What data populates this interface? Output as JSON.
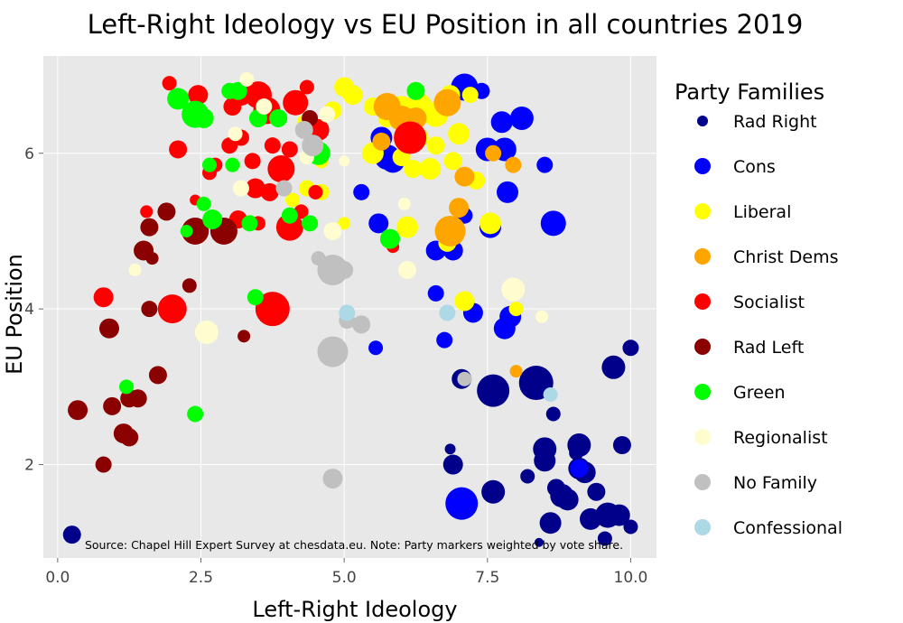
{
  "chart_data": {
    "type": "scatter",
    "title": "Left-Right Ideology vs EU Position in all countries 2019",
    "xlabel": "Left-Right Ideology",
    "ylabel": "EU Position",
    "xlim": [
      -0.25,
      10.45
    ],
    "ylim": [
      0.8,
      7.25
    ],
    "xticks": [
      0,
      2.5,
      5,
      7.5,
      10
    ],
    "xtick_labels": [
      "0.0",
      "2.5",
      "5.0",
      "7.5",
      "10.0"
    ],
    "yticks": [
      2,
      4,
      6
    ],
    "ytick_labels": [
      "2",
      "4",
      "6"
    ],
    "grid": true,
    "legend_title": "Party Families",
    "legend_position": "right",
    "annotation": "Source: Chapel Hill Expert Survey at chesdata.eu. Note: Party markers weighted by vote share.",
    "series": [
      {
        "name": "Rad Right",
        "color": "#00008b",
        "points": [
          [
            9.6,
            1.35,
            14
          ],
          [
            9.3,
            1.3,
            12
          ],
          [
            8.8,
            1.6,
            13
          ],
          [
            8.5,
            2.2,
            13
          ],
          [
            9.1,
            2.25,
            13
          ],
          [
            9.7,
            3.25,
            13
          ],
          [
            10.0,
            3.5,
            9
          ],
          [
            8.35,
            3.05,
            19
          ],
          [
            7.6,
            2.95,
            18
          ],
          [
            7.05,
            3.1,
            11
          ],
          [
            8.5,
            2.05,
            12
          ],
          [
            9.1,
            1.95,
            12
          ],
          [
            9.2,
            1.9,
            12
          ],
          [
            8.7,
            1.7,
            10
          ],
          [
            8.9,
            1.55,
            12
          ],
          [
            8.6,
            1.25,
            12
          ],
          [
            8.2,
            1.85,
            8
          ],
          [
            9.55,
            1.05,
            8
          ],
          [
            10.0,
            1.2,
            8
          ],
          [
            9.85,
            2.25,
            10
          ],
          [
            9.05,
            2.15,
            8
          ],
          [
            6.9,
            2.0,
            11
          ],
          [
            6.85,
            2.2,
            6
          ],
          [
            7.6,
            1.65,
            13
          ],
          [
            8.4,
            1.0,
            5
          ],
          [
            8.65,
            2.65,
            8
          ],
          [
            9.8,
            1.35,
            12
          ],
          [
            9.4,
            1.65,
            10
          ],
          [
            0.25,
            1.1,
            10
          ]
        ]
      },
      {
        "name": "Cons",
        "color": "#0000ff",
        "points": [
          [
            7.1,
            6.85,
            15
          ],
          [
            7.4,
            6.8,
            9
          ],
          [
            7.75,
            6.4,
            12
          ],
          [
            8.1,
            6.45,
            13
          ],
          [
            7.5,
            6.05,
            13
          ],
          [
            7.8,
            6.05,
            13
          ],
          [
            8.5,
            5.85,
            9
          ],
          [
            7.85,
            5.5,
            12
          ],
          [
            8.65,
            5.1,
            14
          ],
          [
            7.55,
            5.05,
            12
          ],
          [
            6.9,
            4.75,
            11
          ],
          [
            6.6,
            4.75,
            11
          ],
          [
            7.1,
            5.2,
            9
          ],
          [
            6.6,
            4.2,
            9
          ],
          [
            7.8,
            3.75,
            12
          ],
          [
            7.9,
            3.9,
            12
          ],
          [
            7.25,
            3.95,
            11
          ],
          [
            6.75,
            3.6,
            9
          ],
          [
            5.75,
            5.95,
            14
          ],
          [
            5.85,
            5.9,
            13
          ],
          [
            5.65,
            6.2,
            12
          ],
          [
            5.6,
            5.1,
            11
          ],
          [
            7.05,
            1.5,
            18
          ],
          [
            9.1,
            1.95,
            10
          ],
          [
            5.55,
            3.5,
            8
          ],
          [
            5.3,
            5.5,
            9
          ]
        ]
      },
      {
        "name": "Liberal",
        "color": "#ffff00",
        "points": [
          [
            6.0,
            6.55,
            16
          ],
          [
            6.3,
            6.6,
            15
          ],
          [
            6.6,
            6.5,
            14
          ],
          [
            6.85,
            6.75,
            11
          ],
          [
            7.2,
            6.75,
            9
          ],
          [
            5.5,
            6.6,
            10
          ],
          [
            5.75,
            6.45,
            10
          ],
          [
            5.0,
            6.85,
            11
          ],
          [
            5.15,
            6.75,
            11
          ],
          [
            4.8,
            6.55,
            10
          ],
          [
            6.3,
            6.2,
            11
          ],
          [
            6.6,
            6.1,
            10
          ],
          [
            7.0,
            6.25,
            12
          ],
          [
            6.5,
            5.8,
            12
          ],
          [
            6.9,
            5.9,
            10
          ],
          [
            7.3,
            5.65,
            10
          ],
          [
            6.0,
            5.95,
            10
          ],
          [
            5.5,
            6.0,
            12
          ],
          [
            4.6,
            5.9,
            8
          ],
          [
            4.35,
            5.55,
            9
          ],
          [
            4.6,
            5.5,
            9
          ],
          [
            5.0,
            5.1,
            7
          ],
          [
            6.2,
            5.8,
            10
          ],
          [
            6.1,
            5.05,
            12
          ],
          [
            6.8,
            4.85,
            10
          ],
          [
            7.1,
            4.1,
            11
          ],
          [
            7.55,
            5.1,
            12
          ],
          [
            8.0,
            4.0,
            8
          ],
          [
            4.3,
            6.4,
            8
          ],
          [
            4.45,
            6.05,
            8
          ],
          [
            4.1,
            5.4,
            8
          ]
        ]
      },
      {
        "name": "Christ Dems",
        "color": "#ffa500",
        "points": [
          [
            5.75,
            6.6,
            15
          ],
          [
            6.0,
            6.45,
            14
          ],
          [
            6.8,
            6.65,
            15
          ],
          [
            7.1,
            5.7,
            11
          ],
          [
            7.0,
            5.3,
            11
          ],
          [
            6.85,
            5.0,
            17
          ],
          [
            7.95,
            5.85,
            9
          ],
          [
            7.6,
            6.0,
            9
          ],
          [
            8.0,
            3.2,
            7
          ],
          [
            5.65,
            6.15,
            10
          ],
          [
            6.25,
            6.45,
            12
          ]
        ]
      },
      {
        "name": "Socialist",
        "color": "#ff0000",
        "points": [
          [
            1.95,
            6.9,
            8
          ],
          [
            2.45,
            6.75,
            11
          ],
          [
            3.2,
            6.75,
            12
          ],
          [
            3.5,
            6.75,
            15
          ],
          [
            3.65,
            6.55,
            15
          ],
          [
            4.15,
            6.65,
            14
          ],
          [
            4.35,
            6.85,
            8
          ],
          [
            3.05,
            6.6,
            10
          ],
          [
            2.1,
            6.05,
            10
          ],
          [
            2.75,
            5.85,
            8
          ],
          [
            3.0,
            6.1,
            9
          ],
          [
            3.2,
            6.2,
            9
          ],
          [
            3.75,
            6.1,
            9
          ],
          [
            4.05,
            6.05,
            9
          ],
          [
            3.4,
            5.9,
            9
          ],
          [
            3.9,
            5.8,
            15
          ],
          [
            3.7,
            5.5,
            10
          ],
          [
            3.45,
            5.55,
            11
          ],
          [
            4.55,
            6.3,
            12
          ],
          [
            4.5,
            5.5,
            8
          ],
          [
            4.25,
            5.25,
            8
          ],
          [
            4.05,
            5.05,
            15
          ],
          [
            3.5,
            5.1,
            8
          ],
          [
            3.15,
            5.15,
            10
          ],
          [
            2.65,
            5.75,
            8
          ],
          [
            1.55,
            5.25,
            7
          ],
          [
            2.0,
            4.0,
            16
          ],
          [
            3.75,
            4.0,
            19
          ],
          [
            0.8,
            4.15,
            11
          ],
          [
            5.85,
            4.8,
            7
          ],
          [
            6.15,
            6.2,
            18
          ],
          [
            2.4,
            5.4,
            6
          ]
        ]
      },
      {
        "name": "Rad Left",
        "color": "#8b0000",
        "points": [
          [
            2.4,
            5.0,
            15
          ],
          [
            2.9,
            5.0,
            15
          ],
          [
            1.6,
            5.05,
            10
          ],
          [
            1.65,
            4.65,
            7
          ],
          [
            1.5,
            4.75,
            11
          ],
          [
            1.6,
            4.0,
            9
          ],
          [
            2.3,
            4.3,
            8
          ],
          [
            1.9,
            5.25,
            10
          ],
          [
            0.9,
            3.75,
            11
          ],
          [
            1.75,
            3.15,
            10
          ],
          [
            1.4,
            2.85,
            10
          ],
          [
            1.25,
            2.85,
            10
          ],
          [
            0.35,
            2.7,
            11
          ],
          [
            0.95,
            2.75,
            10
          ],
          [
            1.15,
            2.4,
            11
          ],
          [
            1.25,
            2.35,
            10
          ],
          [
            0.8,
            2.0,
            9
          ],
          [
            3.25,
            3.65,
            7
          ],
          [
            4.4,
            6.45,
            9
          ]
        ]
      },
      {
        "name": "Green",
        "color": "#00ff00",
        "points": [
          [
            2.1,
            6.7,
            12
          ],
          [
            2.4,
            6.5,
            15
          ],
          [
            2.55,
            6.45,
            11
          ],
          [
            3.15,
            6.8,
            10
          ],
          [
            3.85,
            6.45,
            10
          ],
          [
            3.5,
            6.45,
            10
          ],
          [
            2.65,
            5.85,
            8
          ],
          [
            3.05,
            5.85,
            8
          ],
          [
            2.55,
            5.35,
            8
          ],
          [
            2.7,
            5.15,
            11
          ],
          [
            3.35,
            5.1,
            9
          ],
          [
            4.05,
            5.2,
            9
          ],
          [
            4.4,
            5.1,
            9
          ],
          [
            4.55,
            6.0,
            13
          ],
          [
            6.25,
            6.8,
            10
          ],
          [
            5.8,
            4.9,
            11
          ],
          [
            2.25,
            5.0,
            7
          ],
          [
            3.45,
            4.15,
            9
          ],
          [
            1.2,
            3.0,
            8
          ],
          [
            2.4,
            2.65,
            9
          ],
          [
            3.0,
            6.8,
            9
          ]
        ]
      },
      {
        "name": "Regionalist",
        "color": "#fffdd0",
        "points": [
          [
            3.3,
            6.95,
            8
          ],
          [
            3.6,
            6.6,
            9
          ],
          [
            4.7,
            6.5,
            9
          ],
          [
            3.1,
            6.25,
            8
          ],
          [
            4.35,
            5.95,
            8
          ],
          [
            5.0,
            5.9,
            6
          ],
          [
            3.2,
            5.55,
            9
          ],
          [
            4.8,
            5.0,
            10
          ],
          [
            6.1,
            4.5,
            10
          ],
          [
            7.95,
            4.25,
            13
          ],
          [
            2.6,
            3.7,
            13
          ],
          [
            1.35,
            4.5,
            7
          ],
          [
            8.45,
            3.9,
            7
          ],
          [
            6.05,
            5.35,
            7
          ]
        ]
      },
      {
        "name": "No Family",
        "color": "#c0c0c0",
        "points": [
          [
            4.8,
            4.5,
            17
          ],
          [
            5.0,
            4.5,
            10
          ],
          [
            4.55,
            4.65,
            8
          ],
          [
            5.05,
            3.85,
            9
          ],
          [
            5.3,
            3.8,
            10
          ],
          [
            4.8,
            3.45,
            17
          ],
          [
            4.8,
            1.82,
            11
          ],
          [
            7.1,
            3.1,
            8
          ],
          [
            3.95,
            5.55,
            9
          ],
          [
            4.45,
            6.1,
            12
          ],
          [
            4.3,
            6.3,
            10
          ]
        ]
      },
      {
        "name": "Confessional",
        "color": "#add8e6",
        "points": [
          [
            5.05,
            3.95,
            9
          ],
          [
            6.8,
            3.95,
            9
          ],
          [
            8.6,
            2.9,
            8
          ]
        ]
      }
    ]
  }
}
